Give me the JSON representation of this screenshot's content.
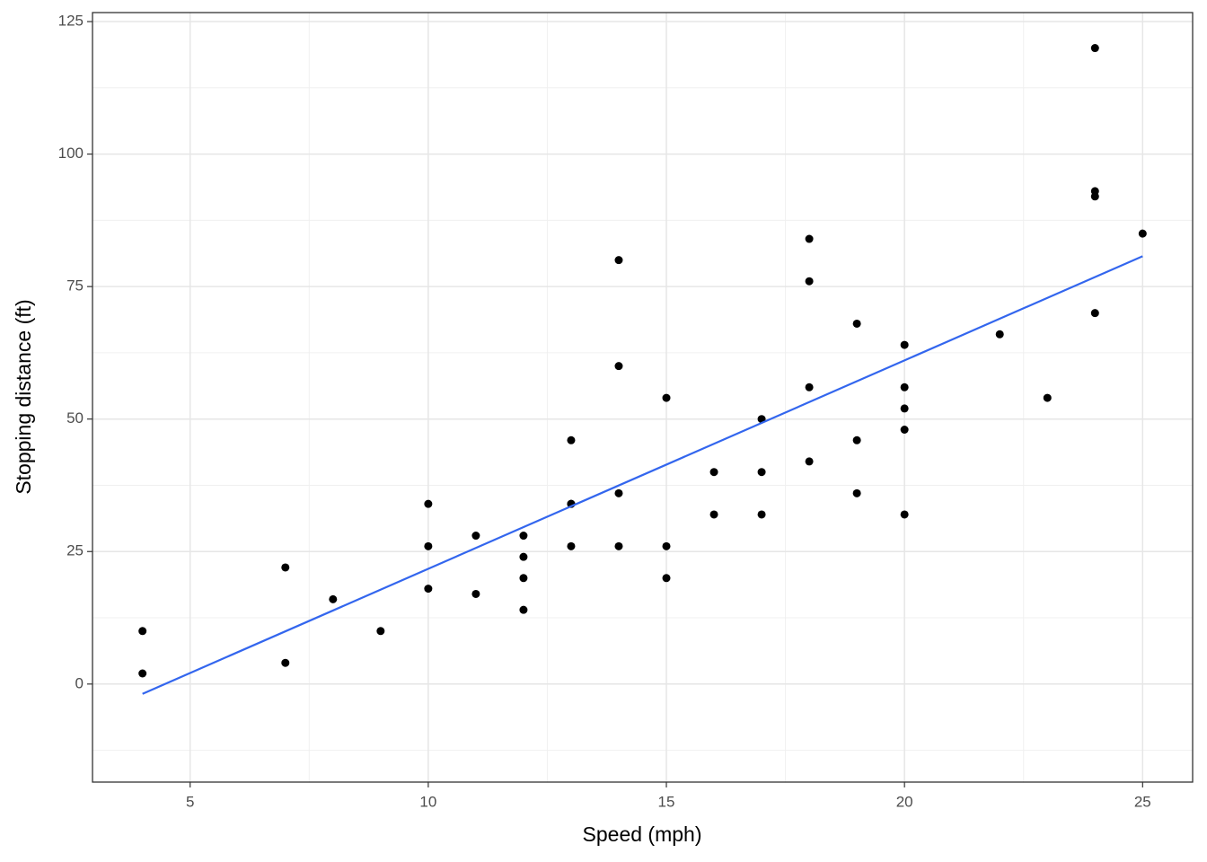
{
  "chart_data": {
    "type": "scatter",
    "xlabel": "Speed (mph)",
    "ylabel": "Stopping distance (ft)",
    "series": [
      {
        "type": "scatter",
        "color": "#000000",
        "x": [
          4,
          4,
          7,
          7,
          8,
          9,
          10,
          10,
          10,
          11,
          11,
          12,
          12,
          12,
          12,
          13,
          13,
          13,
          13,
          14,
          14,
          14,
          14,
          15,
          15,
          15,
          16,
          16,
          17,
          17,
          17,
          18,
          18,
          18,
          18,
          19,
          19,
          19,
          20,
          20,
          20,
          20,
          20,
          22,
          23,
          24,
          24,
          24,
          24,
          25
        ],
        "values": [
          2,
          10,
          4,
          22,
          16,
          10,
          18,
          26,
          34,
          17,
          28,
          14,
          20,
          24,
          28,
          26,
          34,
          34,
          46,
          26,
          36,
          60,
          80,
          20,
          26,
          54,
          32,
          40,
          32,
          40,
          50,
          42,
          56,
          76,
          84,
          36,
          46,
          68,
          32,
          48,
          52,
          56,
          64,
          66,
          54,
          70,
          92,
          93,
          120,
          85
        ]
      },
      {
        "type": "line",
        "color": "#3366ee",
        "x": [
          4,
          25
        ],
        "values": [
          -1.85,
          80.73
        ]
      }
    ],
    "xlim": [
      2.95,
      26.05
    ],
    "xticks": [
      5,
      10,
      15,
      20,
      25
    ],
    "x_minor_grid": [
      7.5,
      12.5,
      17.5,
      22.5
    ],
    "ylim": [
      -18.5,
      126.7
    ],
    "yticks": [
      0,
      25,
      50,
      75,
      100,
      125
    ],
    "y_minor_grid": [
      -12.5,
      12.5,
      37.5,
      62.5,
      87.5,
      112.5
    ],
    "grid": true
  }
}
